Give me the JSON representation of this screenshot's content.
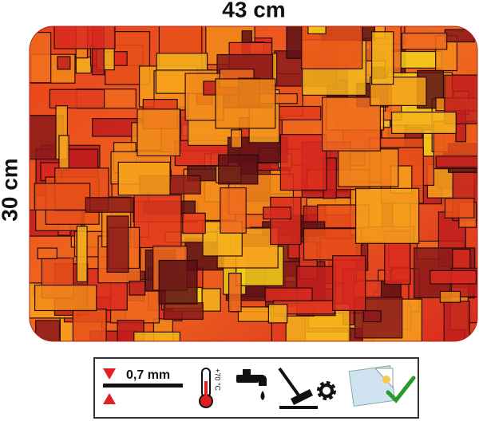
{
  "product": {
    "width_label": "43 cm",
    "height_label": "30 cm",
    "thickness_label": "0,7 mm",
    "temperature_label": "+70 °C"
  }
}
